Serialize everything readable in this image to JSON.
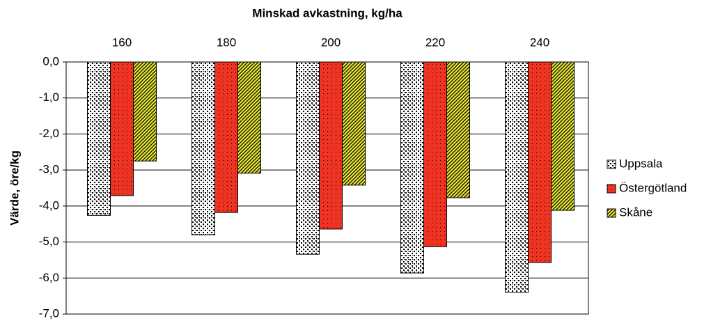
{
  "chart_data": {
    "type": "bar",
    "title": "Minskad avkastning, kg/ha",
    "y_label": "Värde, öre/kg",
    "categories": [
      "160",
      "180",
      "200",
      "220",
      "240"
    ],
    "series": [
      {
        "name": "Uppsala",
        "color": "#ffffff",
        "values": [
          -4.26,
          -4.8,
          -5.34,
          -5.86,
          -6.4
        ]
      },
      {
        "name": "Östergötland",
        "color": "#ee3322",
        "values": [
          -3.71,
          -4.18,
          -4.64,
          -5.13,
          -5.57
        ]
      },
      {
        "name": "Skåne",
        "color": "#e6e632",
        "values": [
          -2.75,
          -3.09,
          -3.42,
          -3.77,
          -4.12
        ]
      }
    ],
    "ylim": [
      -7,
      0
    ],
    "yticks": [
      {
        "value": 0,
        "label": "0,0"
      },
      {
        "value": -1,
        "label": "-1,0"
      },
      {
        "value": -2,
        "label": "-2,0"
      },
      {
        "value": -3,
        "label": "-3,0"
      },
      {
        "value": -4,
        "label": "-4,0"
      },
      {
        "value": -5,
        "label": "-5,0"
      },
      {
        "value": -6,
        "label": "-6,0"
      },
      {
        "value": -7,
        "label": "-7,0"
      }
    ],
    "grid": true,
    "legend": "right"
  }
}
